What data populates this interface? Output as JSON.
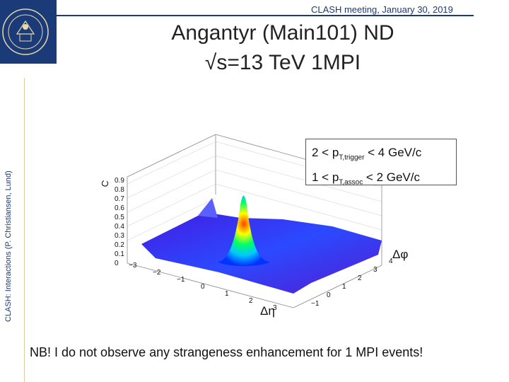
{
  "header": {
    "meeting": "CLASH meeting, January 30, 2019"
  },
  "sidebar": {
    "vertical_text": "CLASH: Interactions (P. Christiansen, Lund)"
  },
  "logo": {
    "name": "lund-university-seal-icon",
    "color": "#1b3a78",
    "seal_text": [
      "1666",
      "SIGILLVM",
      "CAROLINA"
    ]
  },
  "slide": {
    "title_line1": "Angantyr (Main101) ND",
    "title_line2": "√s=13 TeV 1MPI",
    "note": "NB! I do not observe any strangeness enhancement for 1 MPI events!"
  },
  "legend": {
    "line1_pre": "2 < p",
    "line1_sub": "T,trigger",
    "line1_post": " < 4 GeV/c",
    "line2_pre": "1 < p",
    "line2_sub": "T,assoc",
    "line2_post": " < 2 GeV/c"
  },
  "chart_data": {
    "type": "surface",
    "zlabel": "C",
    "xlabel": "Δη",
    "ylabel": "Δφ",
    "z_ticks": [
      "0",
      "0.1",
      "0.2",
      "0.3",
      "0.4",
      "0.5",
      "0.6",
      "0.7",
      "0.8",
      "0.9"
    ],
    "x_ticks": [
      "−3",
      "−2",
      "−1",
      "0",
      "1",
      "2",
      "3"
    ],
    "y_ticks": [
      "−1",
      "0",
      "1",
      "2",
      "3",
      "4"
    ],
    "peak": {
      "delta_eta": 0,
      "delta_phi": 0,
      "value": 0.95
    },
    "background_level": 0.1,
    "colors": [
      "#5a00c8",
      "#0033ff",
      "#00c8ff",
      "#00ff66",
      "#ffff00",
      "#ff4000"
    ]
  }
}
